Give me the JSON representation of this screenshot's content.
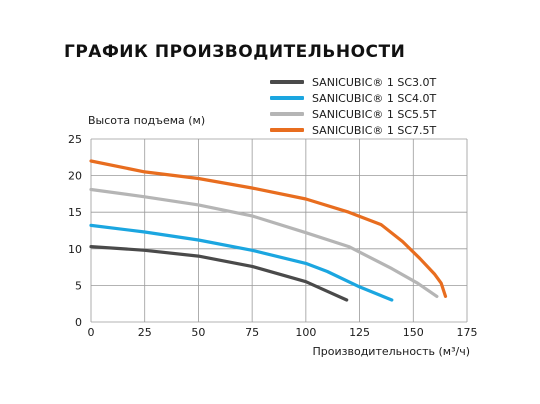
{
  "chart_data": {
    "type": "line",
    "title": "ГРАФИК ПРОИЗВОДИТЕЛЬНОСТИ",
    "xlabel": "Производительность (м³/ч)",
    "ylabel": "Высота подъема (м)",
    "xlim": [
      0,
      175
    ],
    "ylim": [
      0,
      25
    ],
    "xticks": [
      "0",
      "25",
      "50",
      "75",
      "100",
      "125",
      "150",
      "175"
    ],
    "yticks": [
      "0",
      "5",
      "10",
      "15",
      "20",
      "25"
    ],
    "grid": true,
    "legend_position": "top-right",
    "series": [
      {
        "name": "SANICUBIC® 1 SC3.0T",
        "color": "#4a4a4a",
        "points": [
          [
            0,
            10.3
          ],
          [
            25,
            9.8
          ],
          [
            50,
            9.0
          ],
          [
            75,
            7.6
          ],
          [
            100,
            5.5
          ],
          [
            110,
            4.2
          ],
          [
            119,
            3.0
          ]
        ]
      },
      {
        "name": "SANICUBIC® 1 SC4.0T",
        "color": "#1ba6e0",
        "points": [
          [
            0,
            13.2
          ],
          [
            25,
            12.3
          ],
          [
            50,
            11.2
          ],
          [
            75,
            9.8
          ],
          [
            100,
            8.0
          ],
          [
            110,
            6.9
          ],
          [
            125,
            4.8
          ],
          [
            140,
            3.0
          ]
        ]
      },
      {
        "name": "SANICUBIC® 1 SC5.5T",
        "color": "#b5b5b5",
        "points": [
          [
            0,
            18.1
          ],
          [
            25,
            17.1
          ],
          [
            50,
            16.0
          ],
          [
            75,
            14.5
          ],
          [
            100,
            12.2
          ],
          [
            120,
            10.3
          ],
          [
            140,
            7.3
          ],
          [
            152,
            5.3
          ],
          [
            161,
            3.5
          ]
        ]
      },
      {
        "name": "SANICUBIC® 1 SC7.5T",
        "color": "#e86d1f",
        "points": [
          [
            0,
            22.0
          ],
          [
            25,
            20.5
          ],
          [
            50,
            19.6
          ],
          [
            75,
            18.3
          ],
          [
            100,
            16.8
          ],
          [
            120,
            15.0
          ],
          [
            135,
            13.3
          ],
          [
            145,
            11.0
          ],
          [
            153,
            8.7
          ],
          [
            160,
            6.5
          ],
          [
            163,
            5.3
          ],
          [
            165,
            3.5
          ]
        ]
      }
    ]
  }
}
